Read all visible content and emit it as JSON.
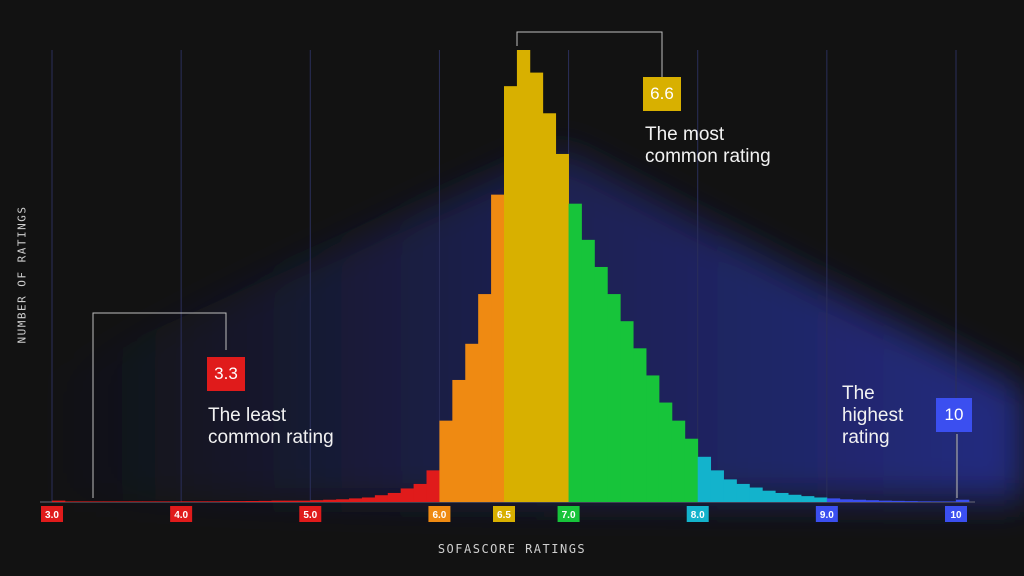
{
  "chart_data": {
    "type": "bar",
    "title": "",
    "xlabel": "SOFASCORE RATINGS",
    "ylabel": "NUMBER OF RATINGS",
    "xlim": [
      3.0,
      10.0
    ],
    "bin_width": 0.1,
    "ticks": [
      {
        "value": 3.0,
        "label": "3.0",
        "color": "#e01b1b"
      },
      {
        "value": 4.0,
        "label": "4.0",
        "color": "#e01b1b"
      },
      {
        "value": 5.0,
        "label": "5.0",
        "color": "#e01b1b"
      },
      {
        "value": 6.0,
        "label": "6.0",
        "color": "#ef8a12"
      },
      {
        "value": 6.5,
        "label": "6.5",
        "color": "#d8b000"
      },
      {
        "value": 7.0,
        "label": "7.0",
        "color": "#17c43a"
      },
      {
        "value": 8.0,
        "label": "8.0",
        "color": "#13b3cc"
      },
      {
        "value": 9.0,
        "label": "9.0",
        "color": "#3b4ff0"
      },
      {
        "value": 10.0,
        "label": "10",
        "color": "#3b4ff0"
      }
    ],
    "color_ranges": [
      {
        "from": 3.0,
        "to": 6.0,
        "color": "#e01b1b"
      },
      {
        "from": 6.0,
        "to": 6.5,
        "color": "#ef8a12"
      },
      {
        "from": 6.5,
        "to": 7.0,
        "color": "#d8b000"
      },
      {
        "from": 7.0,
        "to": 8.0,
        "color": "#17c43a"
      },
      {
        "from": 8.0,
        "to": 9.0,
        "color": "#13b3cc"
      },
      {
        "from": 9.0,
        "to": 10.01,
        "color": "#3b4ff0"
      }
    ],
    "bins": [
      3.0,
      3.1,
      3.2,
      3.3,
      3.4,
      3.5,
      3.6,
      3.7,
      3.8,
      3.9,
      4.0,
      4.1,
      4.2,
      4.3,
      4.4,
      4.5,
      4.6,
      4.7,
      4.8,
      4.9,
      5.0,
      5.1,
      5.2,
      5.3,
      5.4,
      5.5,
      5.6,
      5.7,
      5.8,
      5.9,
      6.0,
      6.1,
      6.2,
      6.3,
      6.4,
      6.5,
      6.6,
      6.7,
      6.8,
      6.9,
      7.0,
      7.1,
      7.2,
      7.3,
      7.4,
      7.5,
      7.6,
      7.7,
      7.8,
      7.9,
      8.0,
      8.1,
      8.2,
      8.3,
      8.4,
      8.5,
      8.6,
      8.7,
      8.8,
      8.9,
      9.0,
      9.1,
      9.2,
      9.3,
      9.4,
      9.5,
      9.6,
      9.7,
      9.8,
      9.9,
      10.0
    ],
    "values": [
      0.3,
      0.1,
      0.05,
      0.02,
      0.05,
      0.05,
      0.08,
      0.1,
      0.1,
      0.12,
      0.15,
      0.15,
      0.15,
      0.2,
      0.2,
      0.22,
      0.25,
      0.3,
      0.3,
      0.3,
      0.4,
      0.5,
      0.6,
      0.8,
      1.0,
      1.5,
      2.0,
      3.0,
      4.0,
      7.0,
      18.0,
      27.0,
      35.0,
      46.0,
      68.0,
      92.0,
      100.0,
      95.0,
      86.0,
      77.0,
      66.0,
      58.0,
      52.0,
      46.0,
      40.0,
      34.0,
      28.0,
      22.0,
      18.0,
      14.0,
      10.0,
      7.0,
      5.0,
      4.0,
      3.2,
      2.5,
      2.0,
      1.6,
      1.3,
      1.0,
      0.8,
      0.6,
      0.5,
      0.4,
      0.3,
      0.25,
      0.2,
      0.15,
      0.12,
      0.1,
      0.5
    ],
    "ylim": [
      0,
      100
    ],
    "annotations": [
      {
        "value": "6.6",
        "text": "The most common rating",
        "color": "#d8b000"
      },
      {
        "value": "3.3",
        "text": "The least common rating",
        "color": "#e01b1b"
      },
      {
        "value": "10",
        "text": "The highest rating",
        "color": "#3b4ff0"
      }
    ]
  },
  "labels": {
    "most_value": "6.6",
    "most_line1": "The most",
    "most_line2": "common rating",
    "least_value": "3.3",
    "least_line1": "The least",
    "least_line2": "common rating",
    "highest_value": "10",
    "highest_line1": "The",
    "highest_line2": "highest",
    "highest_line3": "rating"
  }
}
